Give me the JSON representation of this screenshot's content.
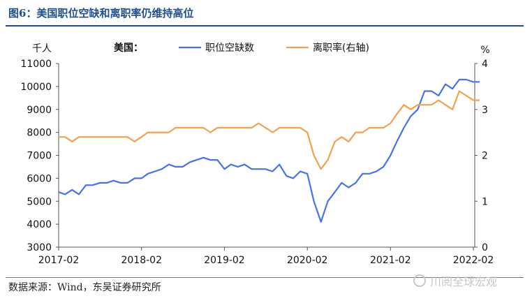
{
  "figure": {
    "title": "图6：美国职位空缺和离职率仍维持高位",
    "source": "数据来源：Wind，东吴证券研究所",
    "watermark": "川阅全球宏观"
  },
  "chart_data": {
    "type": "line",
    "country_label": "美国：",
    "y_left_unit": "千人",
    "y_right_unit": "%",
    "ylim_left": [
      3000,
      11000
    ],
    "ylim_right": [
      0,
      4
    ],
    "y_ticks_left": [
      3000,
      4000,
      5000,
      6000,
      7000,
      8000,
      9000,
      10000,
      11000
    ],
    "y_ticks_right": [
      0,
      1,
      2,
      3,
      4
    ],
    "x_ticks": [
      "2017-02",
      "2018-02",
      "2019-02",
      "2020-02",
      "2021-02",
      "2022-02"
    ],
    "legend_position": "top-center",
    "grid": false,
    "series": [
      {
        "name": "职位空缺数",
        "axis": "left",
        "color": "#4472f0",
        "x": [
          "2017-02",
          "2017-03",
          "2017-04",
          "2017-05",
          "2017-06",
          "2017-07",
          "2017-08",
          "2017-09",
          "2017-10",
          "2017-11",
          "2017-12",
          "2018-01",
          "2018-02",
          "2018-03",
          "2018-04",
          "2018-05",
          "2018-06",
          "2018-07",
          "2018-08",
          "2018-09",
          "2018-10",
          "2018-11",
          "2018-12",
          "2019-01",
          "2019-02",
          "2019-03",
          "2019-04",
          "2019-05",
          "2019-06",
          "2019-07",
          "2019-08",
          "2019-09",
          "2019-10",
          "2019-11",
          "2019-12",
          "2020-01",
          "2020-02",
          "2020-03",
          "2020-04",
          "2020-05",
          "2020-06",
          "2020-07",
          "2020-08",
          "2020-09",
          "2020-10",
          "2020-11",
          "2020-12",
          "2021-01",
          "2021-02",
          "2021-03",
          "2021-04",
          "2021-05",
          "2021-06",
          "2021-07",
          "2021-08",
          "2021-09",
          "2021-10",
          "2021-11",
          "2021-12",
          "2022-01",
          "2022-02",
          "2022-03"
        ],
        "values": [
          5400,
          5300,
          5500,
          5300,
          5700,
          5700,
          5800,
          5800,
          5900,
          5800,
          5800,
          6000,
          6000,
          6200,
          6300,
          6400,
          6600,
          6500,
          6500,
          6700,
          6800,
          6900,
          6800,
          6800,
          6400,
          6600,
          6500,
          6600,
          6400,
          6400,
          6400,
          6300,
          6600,
          6100,
          6000,
          6300,
          6200,
          5000,
          4100,
          5000,
          5400,
          5800,
          5600,
          5800,
          6200,
          6200,
          6300,
          6500,
          7000,
          7600,
          8200,
          8700,
          9000,
          9800,
          9800,
          9600,
          10100,
          9900,
          10300,
          10300,
          10200,
          10200
        ]
      },
      {
        "name": "离职率(右轴)",
        "axis": "right",
        "color": "#f5a04a",
        "x": [
          "2017-02",
          "2017-03",
          "2017-04",
          "2017-05",
          "2017-06",
          "2017-07",
          "2017-08",
          "2017-09",
          "2017-10",
          "2017-11",
          "2017-12",
          "2018-01",
          "2018-02",
          "2018-03",
          "2018-04",
          "2018-05",
          "2018-06",
          "2018-07",
          "2018-08",
          "2018-09",
          "2018-10",
          "2018-11",
          "2018-12",
          "2019-01",
          "2019-02",
          "2019-03",
          "2019-04",
          "2019-05",
          "2019-06",
          "2019-07",
          "2019-08",
          "2019-09",
          "2019-10",
          "2019-11",
          "2019-12",
          "2020-01",
          "2020-02",
          "2020-03",
          "2020-04",
          "2020-05",
          "2020-06",
          "2020-07",
          "2020-08",
          "2020-09",
          "2020-10",
          "2020-11",
          "2020-12",
          "2021-01",
          "2021-02",
          "2021-03",
          "2021-04",
          "2021-05",
          "2021-06",
          "2021-07",
          "2021-08",
          "2021-09",
          "2021-10",
          "2021-11",
          "2021-12",
          "2022-01",
          "2022-02",
          "2022-03"
        ],
        "values": [
          2.4,
          2.4,
          2.3,
          2.4,
          2.4,
          2.4,
          2.4,
          2.4,
          2.4,
          2.4,
          2.4,
          2.3,
          2.4,
          2.5,
          2.5,
          2.5,
          2.5,
          2.6,
          2.6,
          2.6,
          2.6,
          2.6,
          2.5,
          2.6,
          2.6,
          2.6,
          2.6,
          2.6,
          2.6,
          2.7,
          2.6,
          2.5,
          2.6,
          2.6,
          2.6,
          2.6,
          2.5,
          2.0,
          1.7,
          1.9,
          2.3,
          2.4,
          2.3,
          2.5,
          2.5,
          2.6,
          2.6,
          2.6,
          2.7,
          2.9,
          3.1,
          3.0,
          3.1,
          3.1,
          3.1,
          3.2,
          3.1,
          3.0,
          3.4,
          3.3,
          3.2,
          3.2
        ]
      }
    ]
  }
}
